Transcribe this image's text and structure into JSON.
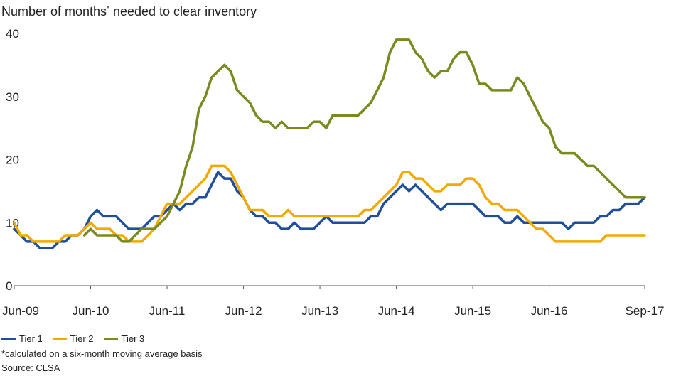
{
  "title_text": "Number of months",
  "title_sup": "*",
  "title_rest": " needed to clear inventory",
  "footnote": "*calculated on a six-month moving average basis",
  "source": "Source: CLSA",
  "colors": {
    "tier1": "#1f4e9c",
    "tier2": "#f2a900",
    "tier3": "#7a8a1e",
    "axis": "#555555"
  },
  "chart_data": {
    "type": "line",
    "title": "Number of months* needed to clear inventory",
    "xlabel": "",
    "ylabel": "",
    "ylim": [
      0,
      40
    ],
    "y_ticks": [
      "0",
      "10",
      "20",
      "30",
      "40"
    ],
    "x_ticks": [
      "Jun-09",
      "Jun-10",
      "Jun-11",
      "Jun-12",
      "Jun-13",
      "Jun-14",
      "Jun-15",
      "Jun-16",
      "Sep-17"
    ],
    "x_tick_month_index": [
      0,
      12,
      24,
      36,
      48,
      60,
      72,
      84,
      99
    ],
    "x_start": "Jun-09",
    "x_end": "Sep-17",
    "legend_position": "bottom-left",
    "grid": false,
    "series": [
      {
        "name": "Tier 1",
        "color": "#1f4e9c",
        "values": [
          9,
          8,
          7,
          7,
          6,
          6,
          6,
          7,
          7,
          8,
          8,
          9,
          11,
          12,
          11,
          11,
          11,
          10,
          9,
          9,
          9,
          10,
          11,
          11,
          12,
          13,
          12,
          13,
          13,
          14,
          14,
          16,
          18,
          17,
          17,
          15,
          14,
          12,
          11,
          11,
          10,
          10,
          9,
          9,
          10,
          9,
          9,
          9,
          10,
          11,
          10,
          10,
          10,
          10,
          10,
          10,
          11,
          11,
          13,
          14,
          15,
          16,
          15,
          16,
          15,
          14,
          13,
          12,
          13,
          13,
          13,
          13,
          13,
          12,
          11,
          11,
          11,
          10,
          10,
          11,
          10,
          10,
          10,
          10,
          10,
          10,
          10,
          9,
          10,
          10,
          10,
          10,
          11,
          11,
          12,
          12,
          13,
          13,
          13,
          14
        ]
      },
      {
        "name": "Tier 2",
        "color": "#f2a900",
        "values": [
          10,
          8,
          8,
          7,
          7,
          7,
          7,
          7,
          8,
          8,
          8,
          9,
          10,
          9,
          9,
          9,
          8,
          8,
          7,
          7,
          7,
          8,
          9,
          11,
          13,
          13,
          13,
          14,
          15,
          16,
          17,
          19,
          19,
          19,
          18,
          16,
          14,
          12,
          12,
          12,
          11,
          11,
          11,
          12,
          11,
          11,
          11,
          11,
          11,
          11,
          11,
          11,
          11,
          11,
          11,
          12,
          12,
          13,
          14,
          15,
          16,
          18,
          18,
          17,
          17,
          16,
          15,
          15,
          16,
          16,
          16,
          17,
          17,
          16,
          14,
          13,
          13,
          12,
          12,
          12,
          11,
          10,
          9,
          9,
          8,
          7,
          7,
          7,
          7,
          7,
          7,
          7,
          7,
          8,
          8,
          8,
          8,
          8,
          8,
          8
        ]
      },
      {
        "name": "Tier 3",
        "color": "#7a8a1e",
        "values": [
          null,
          null,
          null,
          null,
          null,
          null,
          null,
          null,
          null,
          null,
          null,
          8,
          9,
          8,
          8,
          8,
          8,
          7,
          7,
          8,
          9,
          9,
          9,
          10,
          11,
          13,
          15,
          19,
          22,
          28,
          30,
          33,
          34,
          35,
          34,
          31,
          30,
          29,
          27,
          26,
          26,
          25,
          26,
          25,
          25,
          25,
          25,
          26,
          26,
          25,
          27,
          27,
          27,
          27,
          27,
          28,
          29,
          31,
          33,
          37,
          39,
          39,
          39,
          37,
          36,
          34,
          33,
          34,
          34,
          36,
          37,
          37,
          35,
          32,
          32,
          31,
          31,
          31,
          31,
          33,
          32,
          30,
          28,
          26,
          25,
          22,
          21,
          21,
          21,
          20,
          19,
          19,
          18,
          17,
          16,
          15,
          14,
          14,
          14,
          14
        ]
      }
    ]
  }
}
